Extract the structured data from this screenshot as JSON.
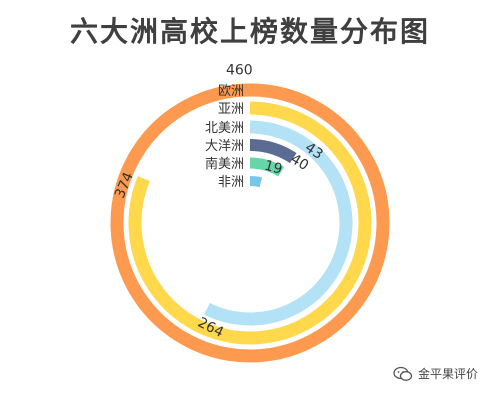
{
  "chart_data": {
    "type": "radial-bar",
    "title": "六大洲高校上榜数量分布图",
    "max": 460,
    "categories": [
      "欧洲",
      "亚洲",
      "北美洲",
      "大洋洲",
      "南美洲",
      "非洲"
    ],
    "values": [
      460,
      374,
      264,
      43,
      40,
      19
    ],
    "colors": [
      "#fe9a4f",
      "#ffd84b",
      "#b3e2f6",
      "#5a6b94",
      "#66d6a8",
      "#78c6ea"
    ],
    "data_labels": [
      "460",
      "374",
      "264",
      "43",
      "40",
      "19"
    ]
  },
  "watermark": {
    "text": "金平果评价",
    "icon": "wechat-icon"
  }
}
